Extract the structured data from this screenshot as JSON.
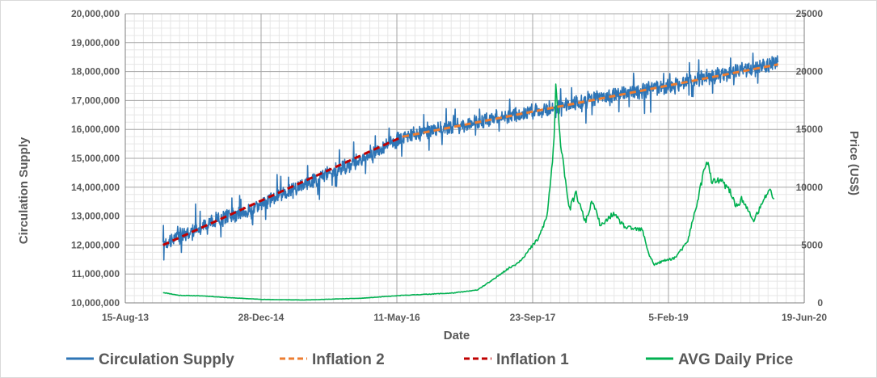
{
  "chart_data": {
    "type": "line",
    "xlabel": "Date",
    "ylabel": "Circulation Supply",
    "y2label": "Price (US$)",
    "x_ticks": [
      "15-Aug-13",
      "28-Dec-14",
      "11-May-16",
      "23-Sep-17",
      "5-Feb-19",
      "19-Jun-20"
    ],
    "xlim": [
      "2013-08-15",
      "2020-06-19"
    ],
    "ylim": [
      10000000,
      20000000
    ],
    "y_ticks": [
      "10,000,000",
      "11,000,000",
      "12,000,000",
      "13,000,000",
      "14,000,000",
      "15,000,000",
      "16,000,000",
      "17,000,000",
      "18,000,000",
      "19,000,000",
      "20,000,000"
    ],
    "y2lim": [
      0,
      25000
    ],
    "y2_ticks": [
      "0",
      "5000",
      "10000",
      "15000",
      "20000",
      "25000"
    ],
    "grid": true,
    "legend_position": "bottom",
    "series": [
      {
        "name": "Circulation Supply",
        "axis": "left",
        "color": "#2e75b6",
        "style": "solid-noisy",
        "x": [
          "2014-01-01",
          "2014-06-01",
          "2015-01-01",
          "2015-06-01",
          "2016-01-01",
          "2016-06-01",
          "2017-01-01",
          "2017-06-01",
          "2018-01-01",
          "2018-06-01",
          "2019-01-01",
          "2019-06-01",
          "2020-01-01",
          "2020-03-15"
        ],
        "y": [
          12050000,
          12700000,
          13400000,
          14100000,
          14950000,
          15750000,
          16150000,
          16450000,
          16750000,
          17100000,
          17450000,
          17750000,
          18150000,
          18300000
        ]
      },
      {
        "name": "Inflation 1",
        "axis": "left",
        "color": "#c00000",
        "style": "dashed",
        "x": [
          "2014-01-01",
          "2016-06-01"
        ],
        "y": [
          12000000,
          15750000
        ]
      },
      {
        "name": "Inflation 2",
        "axis": "left",
        "color": "#ed7d31",
        "style": "dashed",
        "x": [
          "2016-06-01",
          "2020-03-15"
        ],
        "y": [
          15750000,
          18250000
        ]
      },
      {
        "name": "AVG Daily Price",
        "axis": "right",
        "color": "#00b050",
        "style": "solid",
        "x": [
          "2014-01-01",
          "2014-03-01",
          "2014-06-01",
          "2014-09-01",
          "2015-01-01",
          "2015-06-01",
          "2016-01-01",
          "2016-06-01",
          "2016-12-01",
          "2017-03-01",
          "2017-05-01",
          "2017-06-01",
          "2017-08-01",
          "2017-09-01",
          "2017-10-15",
          "2017-11-15",
          "2017-12-10",
          "2017-12-17",
          "2018-01-01",
          "2018-01-15",
          "2018-02-05",
          "2018-03-01",
          "2018-04-05",
          "2018-05-01",
          "2018-06-01",
          "2018-07-15",
          "2018-09-01",
          "2018-11-01",
          "2018-11-25",
          "2018-12-15",
          "2019-01-15",
          "2019-03-01",
          "2019-04-15",
          "2019-05-15",
          "2019-06-26",
          "2019-07-15",
          "2019-08-15",
          "2019-09-15",
          "2019-10-15",
          "2019-11-01",
          "2019-12-15",
          "2020-01-15",
          "2020-02-10",
          "2020-03-01"
        ],
        "y": [
          900,
          650,
          600,
          450,
          300,
          250,
          400,
          650,
          850,
          1100,
          2000,
          2600,
          3500,
          4300,
          5600,
          7500,
          13500,
          18500,
          14500,
          12000,
          8000,
          9500,
          7000,
          8800,
          6600,
          7700,
          6500,
          6300,
          4200,
          3300,
          3600,
          3900,
          5200,
          8000,
          12500,
          10400,
          10600,
          9800,
          8300,
          9000,
          7100,
          8500,
          9800,
          9000
        ]
      }
    ]
  }
}
